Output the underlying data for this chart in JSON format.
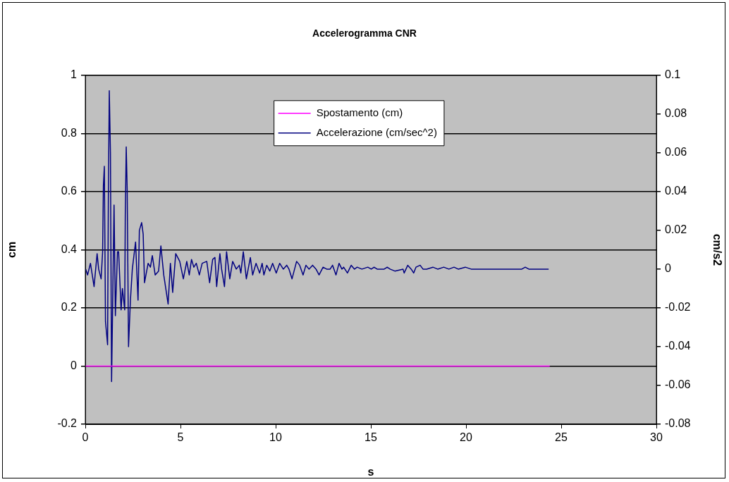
{
  "chart_data": {
    "type": "line",
    "title": "Accelerogramma CNR",
    "xlabel": "s",
    "ylabel": "cm",
    "y2label": "cm/s2",
    "xlim": [
      0,
      30
    ],
    "xticks": [
      0,
      5,
      10,
      15,
      20,
      25,
      30
    ],
    "ylim": [
      -0.2,
      1
    ],
    "yticks": [
      -0.2,
      0,
      0.2,
      0.4,
      0.6,
      0.8,
      1
    ],
    "y2lim": [
      -0.08,
      0.1
    ],
    "y2ticks": [
      -0.08,
      -0.06,
      -0.04,
      -0.02,
      0,
      0.02,
      0.04,
      0.06,
      0.08,
      0.1
    ],
    "grid": "y",
    "legend": "top",
    "marker": "none",
    "line_style": "solid",
    "series": [
      {
        "name": "Spostamento (cm)",
        "color": "#ff00ff",
        "x": [
          0,
          24.4
        ],
        "values": [
          0,
          0
        ]
      },
      {
        "name": "Accelerazione (cm/sec^2)",
        "color": "#000080",
        "axis": "y2",
        "x": [
          0.02,
          0.12,
          0.27,
          0.46,
          0.62,
          0.7,
          0.83,
          0.91,
          0.95,
          1.0,
          1.06,
          1.17,
          1.21,
          1.26,
          1.32,
          1.38,
          1.51,
          1.58,
          1.69,
          1.75,
          1.88,
          1.95,
          2.07,
          2.1,
          2.15,
          2.2,
          2.27,
          2.37,
          2.47,
          2.64,
          2.77,
          2.84,
          2.96,
          3.04,
          3.11,
          3.3,
          3.42,
          3.52,
          3.67,
          3.85,
          3.97,
          4.12,
          4.35,
          4.47,
          4.59,
          4.75,
          4.96,
          5.15,
          5.33,
          5.46,
          5.58,
          5.7,
          5.83,
          5.99,
          6.14,
          6.38,
          6.53,
          6.69,
          6.81,
          6.9,
          7.07,
          7.16,
          7.31,
          7.42,
          7.59,
          7.74,
          7.93,
          8.09,
          8.17,
          8.3,
          8.46,
          8.67,
          8.79,
          8.97,
          9.16,
          9.29,
          9.38,
          9.53,
          9.69,
          9.84,
          10.03,
          10.21,
          10.4,
          10.58,
          10.7,
          10.86,
          11.1,
          11.26,
          11.44,
          11.59,
          11.75,
          11.94,
          12.12,
          12.28,
          12.49,
          12.68,
          12.86,
          12.99,
          13.17,
          13.33,
          13.48,
          13.57,
          13.77,
          13.97,
          14.14,
          14.28,
          14.53,
          14.84,
          15.02,
          15.17,
          15.33,
          15.7,
          15.86,
          16.01,
          16.26,
          16.69,
          16.75,
          16.94,
          17.12,
          17.25,
          17.37,
          17.59,
          17.74,
          17.93,
          18.26,
          18.51,
          18.83,
          19.1,
          19.37,
          19.59,
          19.96,
          20.27,
          21.01,
          21.81,
          22.93,
          23.11,
          23.3,
          23.67,
          23.85,
          24.34
        ],
        "values": [
          0,
          -0.003,
          0.003,
          -0.009,
          0.008,
          0,
          -0.005,
          0.009,
          0.043,
          0.053,
          -0.027,
          -0.039,
          0.036,
          0.092,
          0.06,
          -0.058,
          0.033,
          -0.024,
          0.009,
          0.009,
          -0.021,
          -0.01,
          -0.021,
          0.028,
          0.063,
          0.041,
          -0.04,
          -0.016,
          0,
          0.014,
          -0.016,
          0.02,
          0.024,
          0.018,
          -0.007,
          0.003,
          0.001,
          0.007,
          -0.003,
          -0.001,
          0.012,
          -0.003,
          -0.018,
          0.003,
          -0.012,
          0.008,
          0.004,
          -0.005,
          0.004,
          -0.003,
          0.005,
          0.001,
          0.003,
          -0.003,
          0.003,
          0.004,
          -0.007,
          0.005,
          0.006,
          -0.009,
          0.008,
          0,
          -0.009,
          0.009,
          -0.005,
          0.004,
          0,
          0.002,
          -0.002,
          0.009,
          -0.005,
          0.006,
          -0.003,
          0.003,
          -0.002,
          0.003,
          -0.003,
          0.002,
          -0.001,
          0.003,
          -0.002,
          0.003,
          0,
          0.002,
          0,
          -0.005,
          0.004,
          0.002,
          -0.003,
          0.002,
          0,
          0.002,
          0,
          -0.003,
          0.001,
          0,
          0,
          0.002,
          -0.003,
          0.003,
          0,
          0.001,
          -0.002,
          0.002,
          0,
          0.001,
          0,
          0.001,
          0,
          0.001,
          0,
          0,
          0.001,
          0,
          -0.001,
          0,
          -0.002,
          0.002,
          0,
          -0.002,
          0.001,
          0.002,
          0,
          0,
          0.001,
          0,
          0.001,
          0,
          0.001,
          0,
          0.001,
          0,
          0,
          0,
          0,
          0.001,
          0,
          0,
          0,
          0
        ]
      }
    ]
  }
}
